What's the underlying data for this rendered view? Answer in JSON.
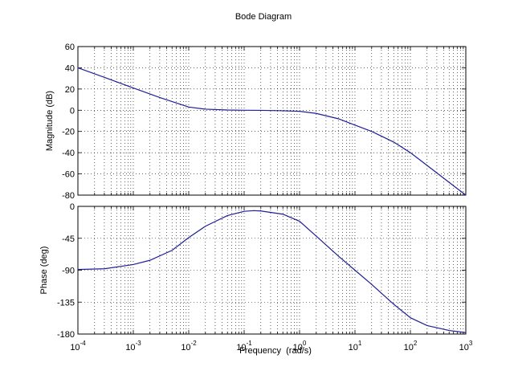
{
  "chart_data": {
    "type": "line",
    "title": "Bode Diagram",
    "xlabel": "Frequency  (rad/s)",
    "x_scale": "log",
    "x_range": [
      0.0001,
      1000
    ],
    "x_ticks": [
      {
        "base": "10",
        "exp": "-4"
      },
      {
        "base": "10",
        "exp": "-3"
      },
      {
        "base": "10",
        "exp": "-2"
      },
      {
        "base": "10",
        "exp": "-1"
      },
      {
        "base": "10",
        "exp": "0"
      },
      {
        "base": "10",
        "exp": "1"
      },
      {
        "base": "10",
        "exp": "2"
      },
      {
        "base": "10",
        "exp": "3"
      }
    ],
    "grid": true,
    "line_color": "#1f1f99",
    "panels": [
      {
        "name": "magnitude",
        "ylabel": "Magnitude (dB)",
        "ylim": [
          -80,
          60
        ],
        "yticks": [
          "60",
          "40",
          "20",
          "0",
          "-20",
          "-40",
          "-60",
          "-80"
        ],
        "series": {
          "x": [
            0.0001,
            0.0003,
            0.001,
            0.003,
            0.01,
            0.02,
            0.05,
            0.1,
            0.2,
            0.5,
            1,
            2,
            5,
            10,
            20,
            50,
            100,
            200,
            500,
            1000
          ],
          "y": [
            40,
            31,
            21,
            12,
            3,
            1,
            0.2,
            0,
            -0.1,
            -0.5,
            -1,
            -3,
            -8,
            -14,
            -20,
            -30,
            -40,
            -52,
            -68,
            -80
          ]
        }
      },
      {
        "name": "phase",
        "ylabel": "Phase (deg)",
        "ylim": [
          -180,
          0
        ],
        "yticks": [
          "0",
          "-45",
          "-90",
          "-135",
          "-180"
        ],
        "series": {
          "x": [
            0.0001,
            0.0003,
            0.001,
            0.002,
            0.005,
            0.01,
            0.02,
            0.05,
            0.1,
            0.15,
            0.2,
            0.5,
            1,
            2,
            5,
            10,
            20,
            50,
            100,
            200,
            500,
            1000
          ],
          "y": [
            -89,
            -88,
            -82,
            -76,
            -62,
            -44,
            -28,
            -13,
            -7,
            -6,
            -6.5,
            -11,
            -21,
            -42,
            -70,
            -90,
            -110,
            -138,
            -157,
            -168,
            -175,
            -178
          ]
        }
      }
    ]
  }
}
